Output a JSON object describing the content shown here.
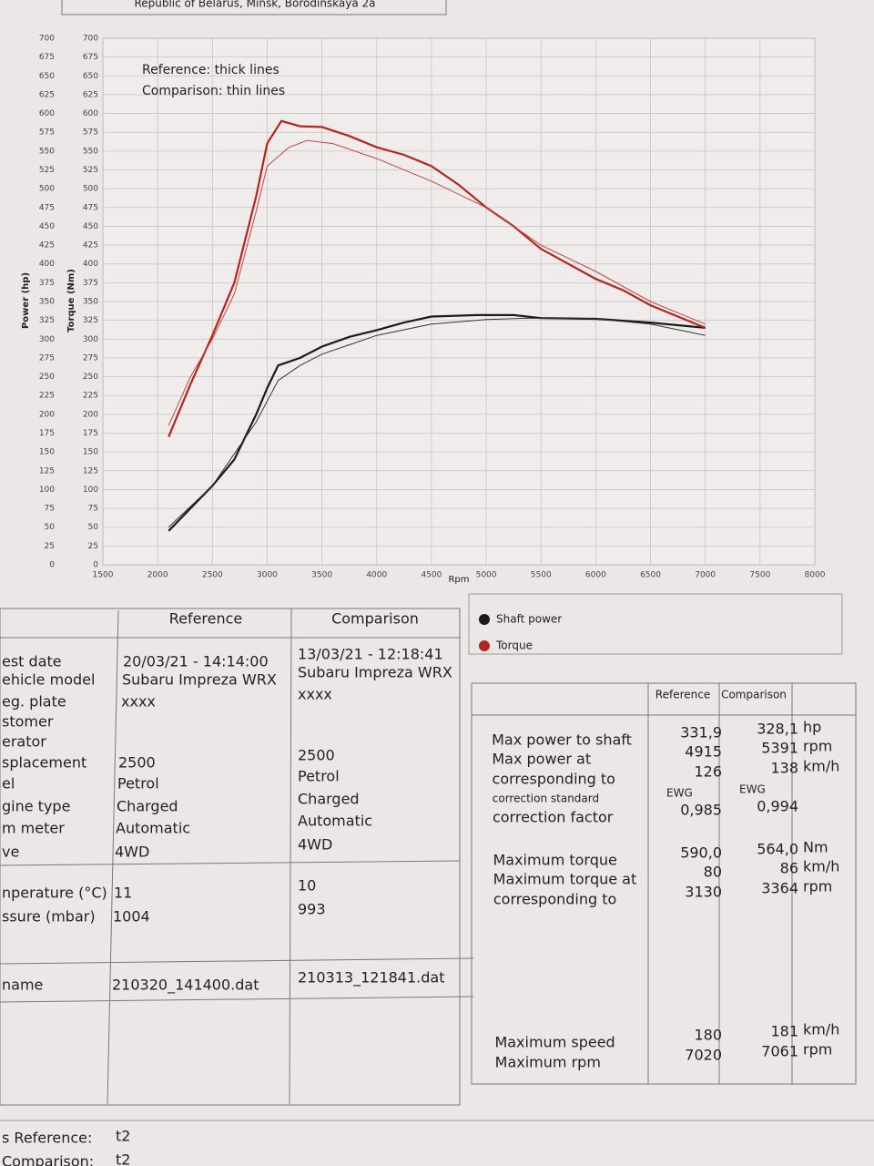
{
  "header": {
    "address": "Republic of Belarus, Minsk, Borodinskaya 2a"
  },
  "chart_data": {
    "type": "line",
    "x_label": "Rpm",
    "y_label": "Power (hp)",
    "y2_label": "Torque (Nm)",
    "notes": [
      "Reference: thick lines",
      "Comparison: thin lines"
    ],
    "xlim": [
      1500,
      8000
    ],
    "xticks": [
      1500,
      2000,
      2500,
      3000,
      3500,
      4000,
      4500,
      5000,
      5500,
      6000,
      6500,
      7000,
      7500,
      8000
    ],
    "ylim": [
      0,
      700
    ],
    "yticks": [
      0,
      25,
      50,
      75,
      100,
      125,
      150,
      175,
      200,
      225,
      250,
      275,
      300,
      325,
      350,
      375,
      400,
      425,
      450,
      475,
      500,
      525,
      550,
      575,
      600,
      625,
      650,
      675,
      700
    ],
    "grid": true,
    "series": [
      {
        "name": "Shaft power",
        "color": "#1a1a1a",
        "width": 2.2,
        "x": [
          2100,
          2300,
          2500,
          2700,
          2900,
          3000,
          3100,
          3300,
          3500,
          3750,
          4000,
          4250,
          4500,
          4915,
          5250,
          5500,
          6000,
          6500,
          7000
        ],
        "values": [
          45,
          75,
          105,
          140,
          200,
          235,
          265,
          275,
          290,
          303,
          312,
          322,
          330,
          332,
          332,
          328,
          327,
          322,
          315
        ]
      },
      {
        "color": "#333333",
        "width": 1,
        "x": [
          2100,
          2500,
          2900,
          3100,
          3300,
          3500,
          4000,
          4500,
          5000,
          5391,
          6000,
          6500,
          7000
        ],
        "values": [
          50,
          105,
          190,
          245,
          265,
          280,
          305,
          320,
          326,
          328,
          327,
          320,
          305
        ]
      },
      {
        "name": "Torque",
        "color": "#b3261e",
        "width": 2.2,
        "x": [
          2100,
          2300,
          2500,
          2700,
          2900,
          3000,
          3130,
          3300,
          3500,
          3750,
          4000,
          4250,
          4500,
          4750,
          5000,
          5250,
          5500,
          5750,
          6000,
          6250,
          6500,
          6750,
          7000
        ],
        "values": [
          170,
          240,
          305,
          375,
          490,
          560,
          590,
          583,
          582,
          570,
          555,
          545,
          530,
          505,
          475,
          450,
          420,
          400,
          380,
          365,
          345,
          330,
          315
        ]
      },
      {
        "color": "#c0453d",
        "width": 1,
        "x": [
          2100,
          2300,
          2500,
          2700,
          2900,
          3000,
          3200,
          3364,
          3600,
          4000,
          4500,
          5000,
          5500,
          6000,
          6500,
          7000
        ],
        "values": [
          185,
          250,
          300,
          360,
          470,
          530,
          555,
          564,
          560,
          540,
          510,
          475,
          425,
          390,
          350,
          320
        ]
      }
    ]
  },
  "info_table": {
    "headers": [
      "Reference",
      "Comparison"
    ],
    "rows": [
      {
        "label": "est date",
        "values": [
          "20/03/21 - 14:14:00",
          "13/03/21 - 12:18:41"
        ]
      },
      {
        "label": "ehicle model",
        "values": [
          "Subaru Impreza WRX",
          "Subaru Impreza WRX"
        ]
      },
      {
        "label": "eg. plate",
        "values": [
          "xxxx",
          "xxxx"
        ]
      },
      {
        "label": "stomer",
        "values": [
          null,
          null
        ]
      },
      {
        "label": "erator",
        "values": [
          null,
          null
        ]
      },
      {
        "label": "splacement",
        "values": [
          "2500",
          "2500"
        ]
      },
      {
        "label": "el",
        "values": [
          "Petrol",
          "Petrol"
        ]
      },
      {
        "label": "gine type",
        "values": [
          "Charged",
          "Charged"
        ]
      },
      {
        "label": "m meter",
        "values": [
          "Automatic",
          "Automatic"
        ]
      },
      {
        "label": "ve",
        "values": [
          "4WD",
          "4WD"
        ]
      },
      {
        "label": "nperature (°C)",
        "values": [
          "11",
          "10"
        ]
      },
      {
        "label": "ssure (mbar)",
        "values": [
          "1004",
          "993"
        ]
      },
      {
        "label": "name",
        "values": [
          "210320_141400.dat",
          "210313_121841.dat"
        ]
      }
    ]
  },
  "results_table": {
    "headers": [
      "Reference",
      "Comparison"
    ],
    "rows": [
      {
        "label": "Max power to shaft",
        "values": [
          "331,9",
          "328,1"
        ],
        "unit": "hp"
      },
      {
        "label": "Max power at",
        "values": [
          "4915",
          "5391"
        ],
        "unit": "rpm"
      },
      {
        "label": "corresponding to",
        "values": [
          "126",
          "138"
        ],
        "unit": "km/h"
      },
      {
        "label": "correction standard",
        "values": [
          "EWG",
          "EWG"
        ]
      },
      {
        "label": "correction factor",
        "values": [
          "0,985",
          "0,994"
        ]
      },
      {
        "label": "Maximum torque",
        "values": [
          "590,0",
          "564,0"
        ],
        "unit": "Nm"
      },
      {
        "label": "Maximum torque at",
        "values": [
          "80",
          "86"
        ],
        "unit": "km/h"
      },
      {
        "label": "corresponding to",
        "values": [
          "3130",
          "3364"
        ],
        "unit": "rpm"
      },
      {
        "label": "Maximum speed",
        "values": [
          "180",
          "181"
        ],
        "unit": "km/h"
      },
      {
        "label": "Maximum rpm",
        "values": [
          "7020",
          "7061"
        ],
        "unit": "rpm"
      }
    ]
  },
  "footer": [
    {
      "label": "s Reference:",
      "value": "t2"
    },
    {
      "label": "Comparison:",
      "value": "t2"
    }
  ]
}
